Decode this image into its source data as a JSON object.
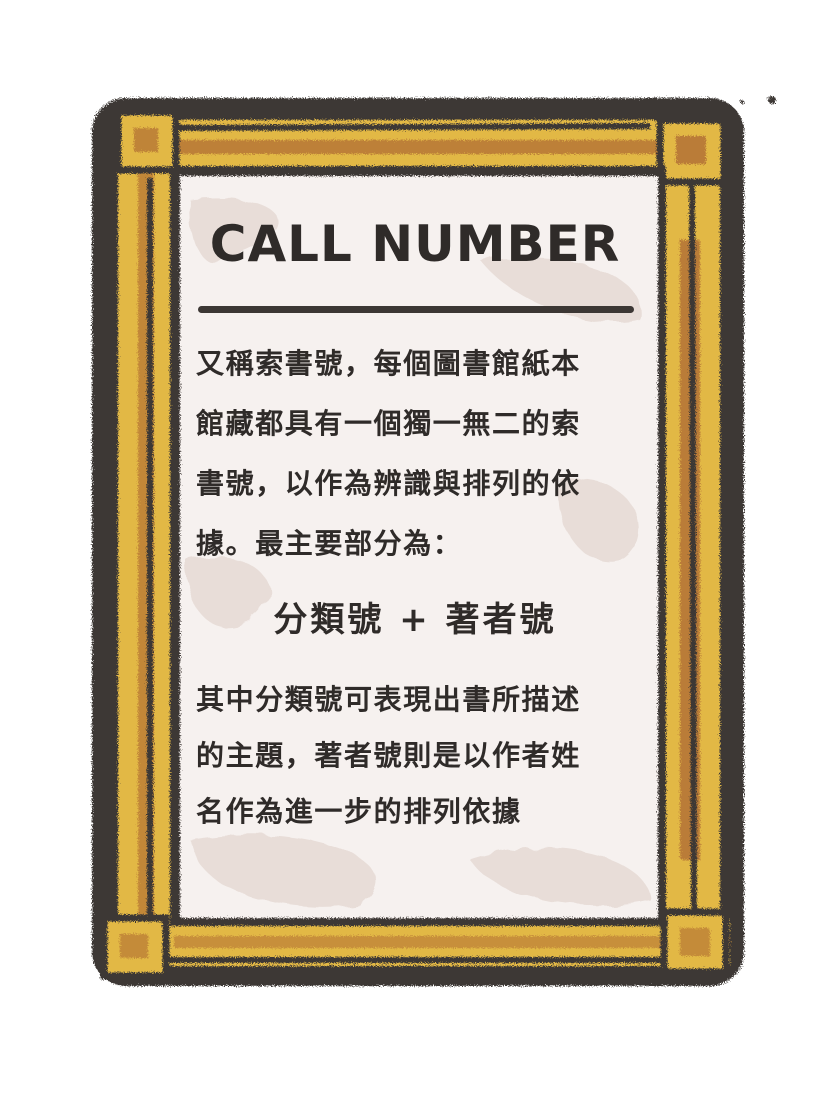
{
  "card": {
    "title": "CALL NUMBER",
    "intro_lines": [
      "又稱索書號，每個圖書館紙本",
      "館藏都具有一個獨一無二的索",
      "書號，以作為辨識與排列的依",
      "據。最主要部分為："
    ],
    "formula": "分類號 + 著者號",
    "detail_lines": [
      "其中分類號可表現出書所描述",
      "的主題，著者號則是以作者姓",
      "名作為進一步的排列依據"
    ]
  },
  "colors": {
    "frame_outline": "#3c3734",
    "frame_gold": "#e2b845",
    "frame_brown": "#b06d33",
    "paper": "#f6f1ef",
    "paper_stain": "#e8ddd8",
    "text": "#2f2b29"
  }
}
